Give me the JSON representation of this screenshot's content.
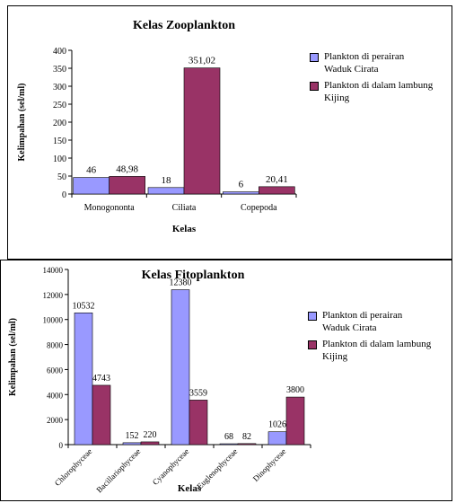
{
  "chart_data": [
    {
      "type": "bar",
      "title": "Kelas Zooplankton",
      "xlabel": "Kelas",
      "ylabel": "Kelimpahan (sel/ml)",
      "ylim": [
        0,
        400
      ],
      "yticks": [
        0,
        50,
        100,
        150,
        200,
        250,
        300,
        350,
        400
      ],
      "categories": [
        "Monogononta",
        "Ciliata",
        "Copepoda"
      ],
      "series": [
        {
          "name": "Plankton di perairan Waduk Cirata",
          "values": [
            46,
            18,
            6
          ],
          "labels": [
            "46",
            "18",
            "6"
          ],
          "color": "#9999ff"
        },
        {
          "name": "Plankton di dalam lambung Kijing",
          "values": [
            48.98,
            351.02,
            20.41
          ],
          "labels": [
            "48,98",
            "351,02",
            "20,41"
          ],
          "color": "#993366"
        }
      ],
      "legend": [
        {
          "line1": "Plankton di perairan",
          "line2": "Waduk Cirata"
        },
        {
          "line1": "Plankton di dalam lambung",
          "line2": "Kijing"
        }
      ],
      "legend_position": "right",
      "grid": false
    },
    {
      "type": "bar",
      "title": "Kelas Fitoplankton",
      "xlabel": "Kelas",
      "ylabel": "Kelimpahan (sel/ml)",
      "ylim": [
        0,
        14000
      ],
      "yticks": [
        0,
        2000,
        4000,
        6000,
        8000,
        10000,
        12000,
        14000
      ],
      "categories": [
        "Chlorophyceae",
        "Bacillariophyceae",
        "Cyanophyceae",
        "Euglenophyceae",
        "Dinophyceae"
      ],
      "series": [
        {
          "name": "Plankton di perairan Waduk Cirata",
          "values": [
            10532,
            152,
            12380,
            68,
            1026
          ],
          "labels": [
            "10532",
            "152",
            "12380",
            "68",
            "1026"
          ],
          "color": "#9999ff"
        },
        {
          "name": "Plankton di dalam lambung Kijing",
          "values": [
            4743,
            220,
            3559,
            82,
            3800
          ],
          "labels": [
            "4743",
            "220",
            "3559",
            "82",
            "3800"
          ],
          "color": "#993366"
        }
      ],
      "legend": [
        {
          "line1": "Plankton di perairan",
          "line2": "Waduk Cirata"
        },
        {
          "line1": "Plankton di dalam lambung",
          "line2": "Kijing"
        }
      ],
      "legend_position": "right",
      "grid": false
    }
  ]
}
